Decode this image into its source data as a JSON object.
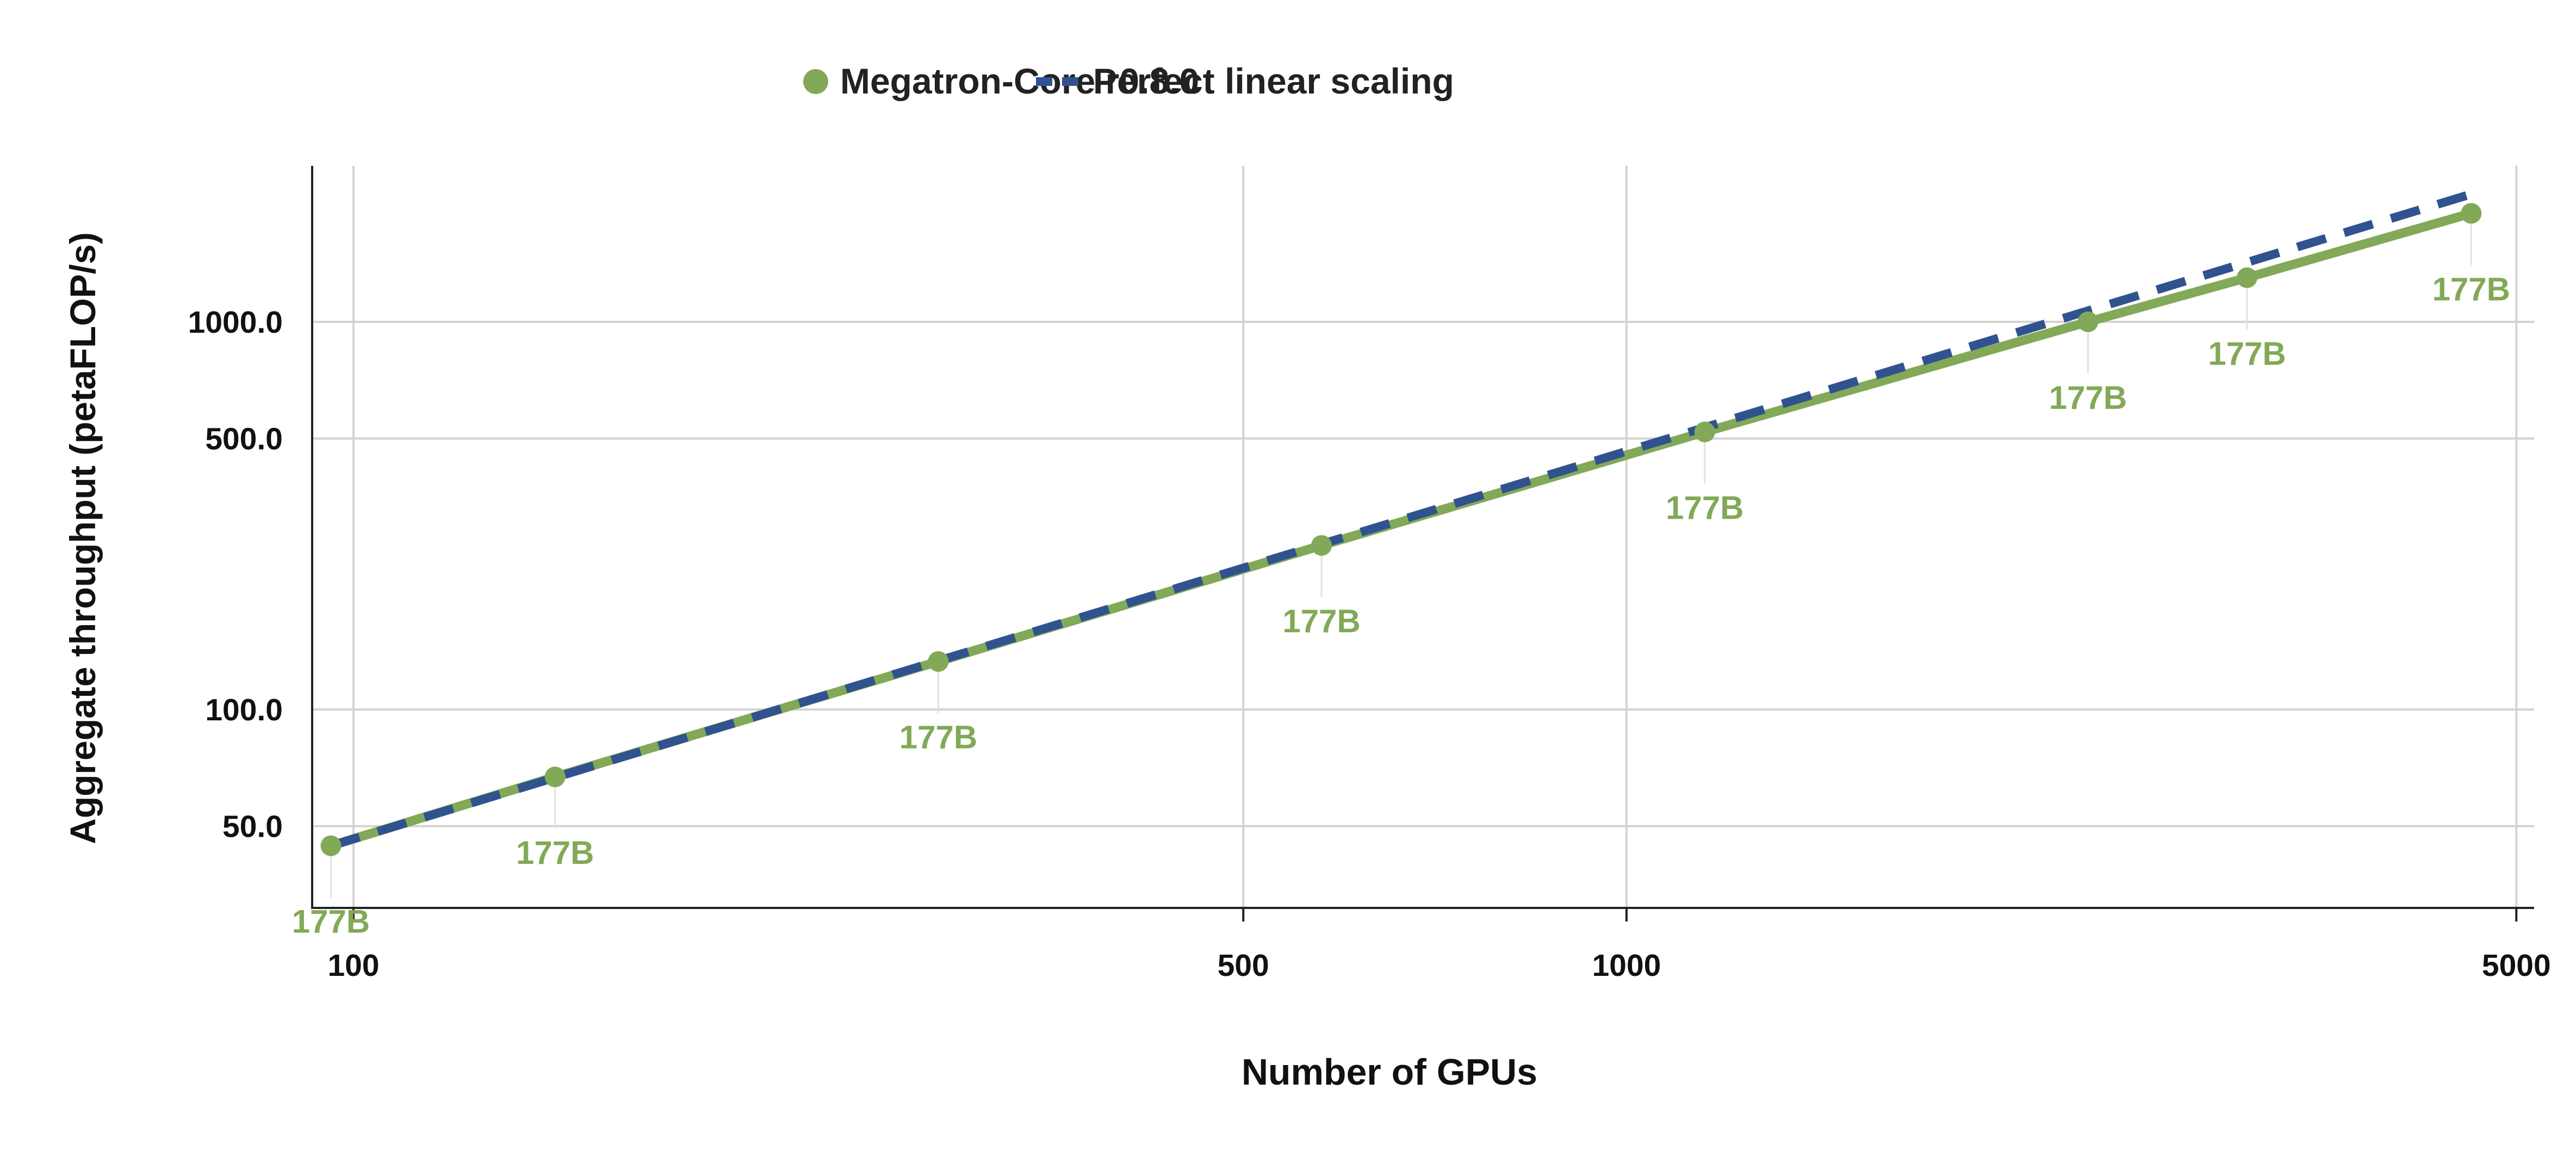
{
  "chart_data": {
    "type": "line",
    "xlabel": "Number of GPUs",
    "ylabel": "Aggregate throughput (petaFLOP/s)",
    "x_scale": "log",
    "y_scale": "log",
    "xlim": [
      92,
      5000
    ],
    "ylim": [
      35,
      2600
    ],
    "x_ticks": [
      100,
      500,
      1000,
      5000
    ],
    "x_tick_labels": [
      "100",
      "500",
      "1000",
      "5000"
    ],
    "y_ticks": [
      50,
      100,
      500,
      1000
    ],
    "y_tick_labels": [
      "50.0",
      "100.0",
      "500.0",
      "1000.0"
    ],
    "grid": true,
    "legend_position": "top-center",
    "series": [
      {
        "name": "Megatron-Core r0.8.0",
        "color": "#82a957",
        "style": "solid-with-markers",
        "x": [
          96,
          144,
          288,
          576,
          1152,
          2304,
          3072,
          4608
        ],
        "y": [
          44.5,
          67,
          133,
          265,
          520,
          1000,
          1300,
          1905
        ],
        "point_labels": [
          "177B",
          "177B",
          "177B",
          "177B",
          "177B",
          "177B",
          "177B",
          "177B"
        ]
      },
      {
        "name": "Perfect linear scaling",
        "color": "#30538f",
        "style": "dashed",
        "x": [
          96,
          4608
        ],
        "y": [
          44.5,
          2136
        ]
      }
    ]
  }
}
